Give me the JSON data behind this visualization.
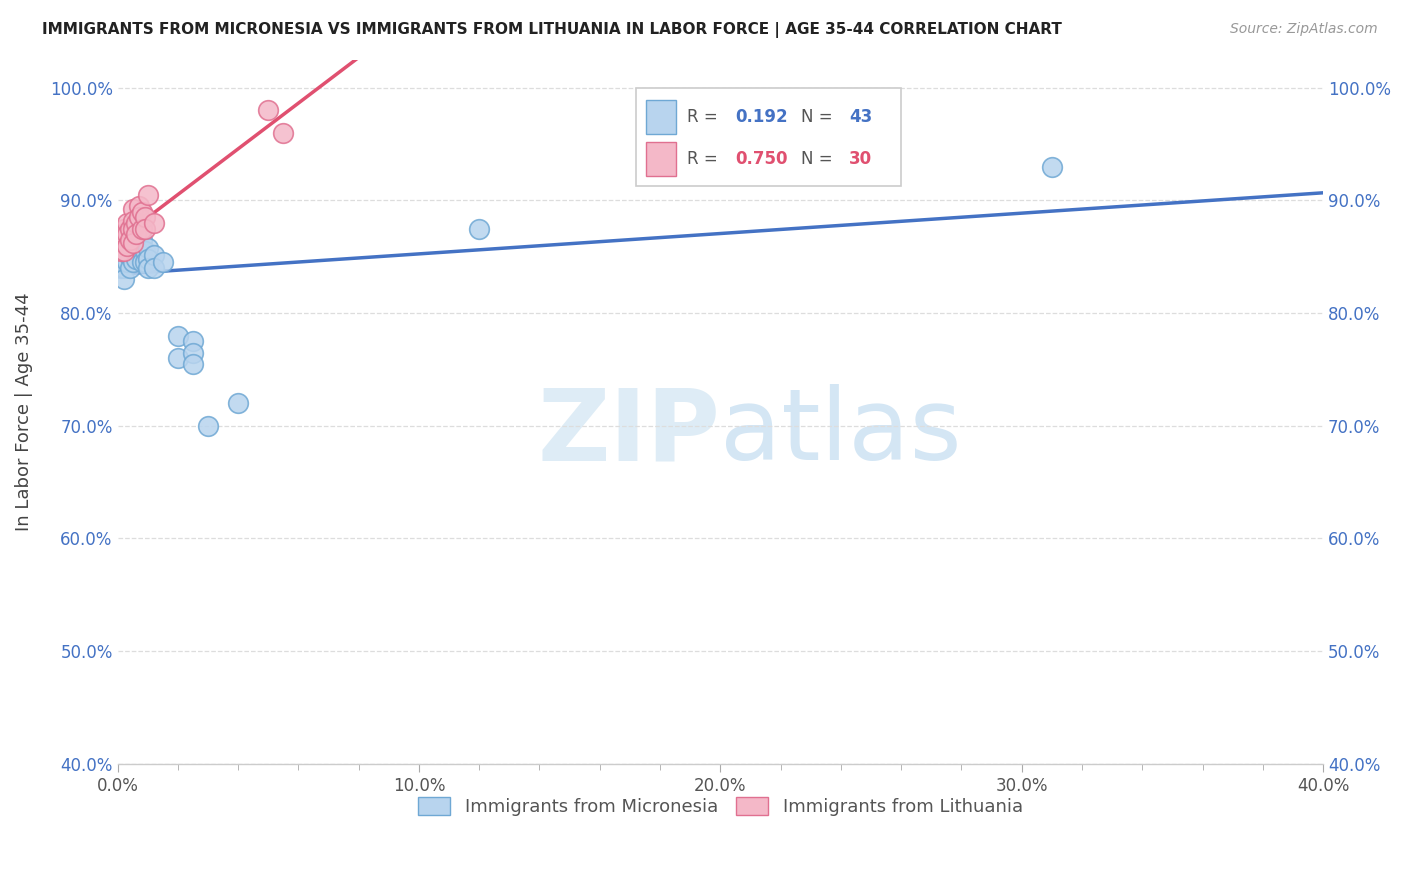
{
  "title": "IMMIGRANTS FROM MICRONESIA VS IMMIGRANTS FROM LITHUANIA IN LABOR FORCE | AGE 35-44 CORRELATION CHART",
  "source": "Source: ZipAtlas.com",
  "xlabel_micronesia": "Immigrants from Micronesia",
  "xlabel_lithuania": "Immigrants from Lithuania",
  "ylabel": "In Labor Force | Age 35-44",
  "xlim": [
    0.0,
    0.4
  ],
  "ylim": [
    0.4,
    1.025
  ],
  "xtick_labels": [
    "0.0%",
    "",
    "",
    "",
    "",
    "10.0%",
    "",
    "",
    "",
    "",
    "20.0%",
    "",
    "",
    "",
    "",
    "30.0%",
    "",
    "",
    "",
    "",
    "40.0%"
  ],
  "xtick_vals": [
    0.0,
    0.02,
    0.04,
    0.06,
    0.08,
    0.1,
    0.12,
    0.14,
    0.16,
    0.18,
    0.2,
    0.22,
    0.24,
    0.26,
    0.28,
    0.3,
    0.32,
    0.34,
    0.36,
    0.38,
    0.4
  ],
  "ytick_labels": [
    "40.0%",
    "50.0%",
    "60.0%",
    "70.0%",
    "80.0%",
    "90.0%",
    "100.0%"
  ],
  "ytick_vals": [
    0.4,
    0.5,
    0.6,
    0.7,
    0.8,
    0.9,
    1.0
  ],
  "micronesia_color": "#b8d4ee",
  "micronesia_edge": "#6fa8d4",
  "lithuania_color": "#f4b8c8",
  "lithuania_edge": "#e07090",
  "trend_micronesia_color": "#4472c4",
  "trend_lithuania_color": "#e05070",
  "R_micronesia": 0.192,
  "N_micronesia": 43,
  "R_lithuania": 0.75,
  "N_lithuania": 30,
  "micronesia_x": [
    0.001,
    0.001,
    0.001,
    0.001,
    0.001,
    0.001,
    0.002,
    0.002,
    0.002,
    0.002,
    0.002,
    0.003,
    0.003,
    0.003,
    0.004,
    0.004,
    0.005,
    0.005,
    0.005,
    0.006,
    0.006,
    0.007,
    0.007,
    0.008,
    0.008,
    0.008,
    0.009,
    0.009,
    0.01,
    0.01,
    0.01,
    0.012,
    0.012,
    0.015,
    0.02,
    0.02,
    0.025,
    0.025,
    0.025,
    0.03,
    0.04,
    0.12,
    0.31
  ],
  "micronesia_y": [
    0.85,
    0.86,
    0.865,
    0.87,
    0.852,
    0.84,
    0.855,
    0.845,
    0.85,
    0.84,
    0.83,
    0.858,
    0.862,
    0.845,
    0.85,
    0.84,
    0.87,
    0.855,
    0.845,
    0.86,
    0.848,
    0.87,
    0.86,
    0.865,
    0.855,
    0.845,
    0.855,
    0.845,
    0.858,
    0.848,
    0.84,
    0.852,
    0.84,
    0.845,
    0.78,
    0.76,
    0.775,
    0.765,
    0.755,
    0.7,
    0.72,
    0.875,
    0.93
  ],
  "lithuania_x": [
    0.001,
    0.001,
    0.001,
    0.001,
    0.002,
    0.002,
    0.002,
    0.002,
    0.002,
    0.003,
    0.003,
    0.003,
    0.004,
    0.004,
    0.005,
    0.005,
    0.005,
    0.005,
    0.006,
    0.006,
    0.007,
    0.007,
    0.008,
    0.008,
    0.009,
    0.009,
    0.01,
    0.012,
    0.05,
    0.055
  ],
  "lithuania_y": [
    0.87,
    0.86,
    0.855,
    0.865,
    0.875,
    0.868,
    0.862,
    0.855,
    0.87,
    0.88,
    0.87,
    0.86,
    0.875,
    0.865,
    0.892,
    0.882,
    0.875,
    0.862,
    0.88,
    0.87,
    0.895,
    0.885,
    0.89,
    0.875,
    0.885,
    0.875,
    0.905,
    0.88,
    0.98,
    0.96
  ],
  "watermark_zip": "ZIP",
  "watermark_atlas": "atlas",
  "background_color": "#ffffff",
  "grid_color": "#dddddd"
}
